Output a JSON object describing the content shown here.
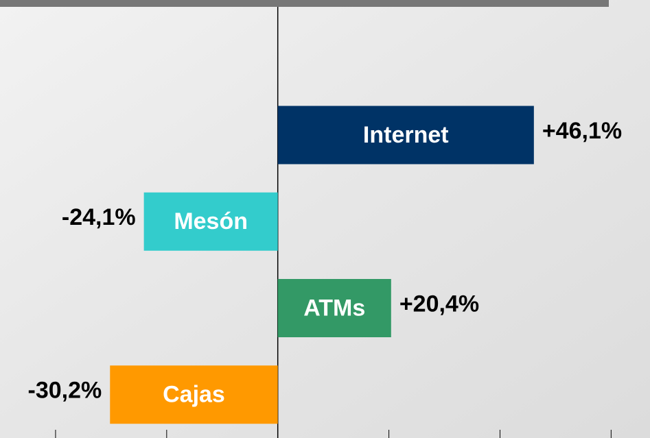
{
  "chart_data": {
    "type": "bar",
    "orientation": "horizontal",
    "categories": [
      "Internet",
      "Mesón",
      "ATMs",
      "Cajas"
    ],
    "values": [
      46.1,
      -24.1,
      20.4,
      -30.2
    ],
    "value_labels": [
      "+46,1%",
      "-24,1%",
      "+20,4%",
      "-30,2%"
    ],
    "colors": [
      "#003366",
      "#33cccc",
      "#339966",
      "#ff9900"
    ],
    "xlim": [
      -50,
      67
    ],
    "xticks": [
      -40,
      -20,
      0,
      20,
      40,
      60
    ]
  }
}
